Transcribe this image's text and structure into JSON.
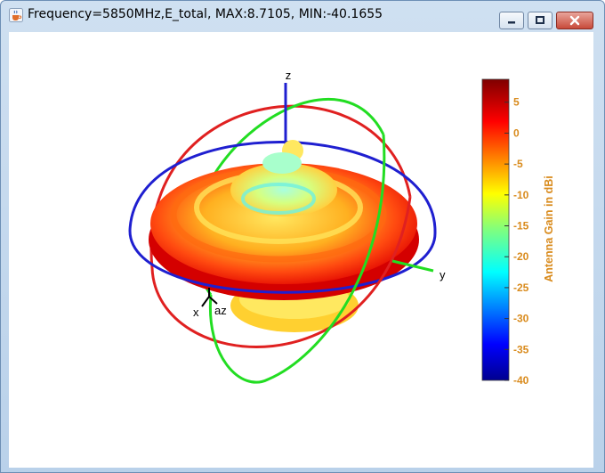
{
  "window": {
    "title": "Frequency=5850MHz,E_total, MAX:8.7105, MIN:-40.1655",
    "icon": "java-cup-icon",
    "controls": [
      "minimize-icon",
      "maximize-icon",
      "close-icon"
    ]
  },
  "axes": {
    "x": "x",
    "y": "y",
    "z": "z",
    "az": "az"
  },
  "colorbar": {
    "label": "Antenna Gain in dBi",
    "ticks": [
      "5",
      "0",
      "-5",
      "-10",
      "-15",
      "-20",
      "-25",
      "-30",
      "-35",
      "-40"
    ],
    "range": [
      -40,
      8.7105
    ],
    "label_color": "#d98b1d",
    "colormap": "jet"
  },
  "rings": {
    "azimuth_color": "#1f1fd0",
    "elevation_1_color": "#e02020",
    "elevation_2_color": "#22dd22"
  }
}
